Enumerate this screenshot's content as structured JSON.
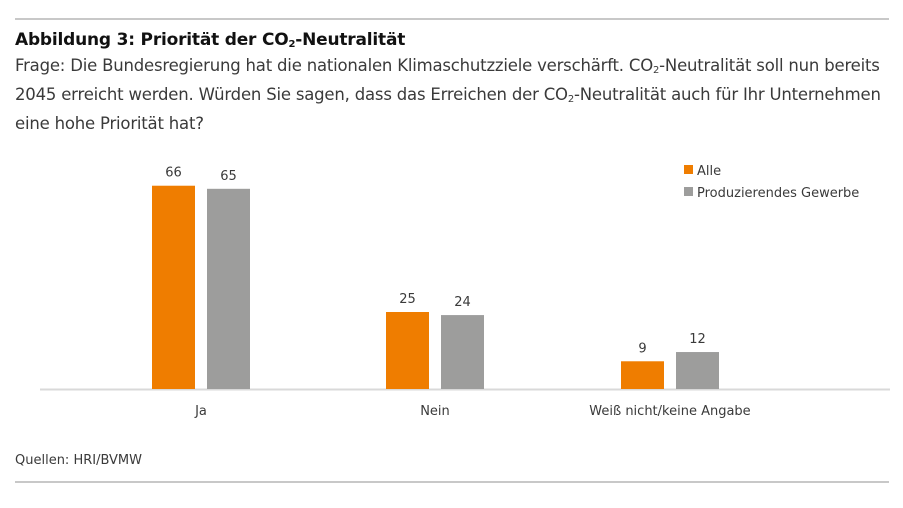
{
  "title": {
    "prefix": "Abbildung 3: Priorität der CO",
    "sub": "2",
    "suffix": "-Neutralität"
  },
  "question": {
    "part1": "Frage: Die Bundesregierung hat die nationalen Klimaschutzziele verschärft. CO",
    "sub1": "2",
    "part2": "-Neutralität soll nun bereits 2045 erreicht werden. Würden Sie sagen, dass das Erreichen der CO",
    "sub2": "2",
    "part3": "-Neutralität auch für Ihr Unternehmen eine hohe Priorität hat?"
  },
  "source": "Quellen: HRI/BVMW",
  "chart_data": {
    "type": "bar",
    "title": "Abbildung 3: Priorität der CO2-Neutralität",
    "xlabel": "",
    "ylabel": "",
    "ylim": [
      0,
      70
    ],
    "grid": false,
    "legend_position": "top-right",
    "categories": [
      "Ja",
      "Nein",
      "Weiß nicht/keine Angabe"
    ],
    "series": [
      {
        "name": "Alle",
        "color": "#ef7d00",
        "values": [
          66,
          25,
          9
        ]
      },
      {
        "name": "Produzierendes Gewerbe",
        "color": "#9d9d9c",
        "values": [
          65,
          24,
          12
        ]
      }
    ],
    "baseline_color": "#d9d9d9"
  }
}
